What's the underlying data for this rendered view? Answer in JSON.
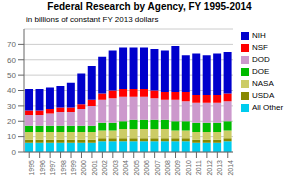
{
  "chart_data": {
    "type": "bar",
    "stacked": true,
    "title": "Federal Research by Agency, FY 1995-2014",
    "subtitle": "in billions of constant FY 2013 dollars",
    "categories": [
      "1995",
      "1996",
      "1997",
      "1998",
      "1999",
      "2000",
      "2001",
      "2002",
      "2003",
      "2004",
      "2005",
      "2006",
      "2007",
      "2008",
      "2009",
      "2010",
      "2011",
      "2012",
      "2013",
      "2014"
    ],
    "series": [
      {
        "name": "All Other",
        "color": "#00ccee",
        "values": [
          6,
          6,
          6,
          6,
          6,
          6,
          6,
          7,
          7,
          7,
          7,
          7,
          7,
          7,
          7,
          7,
          6,
          6,
          6,
          7
        ]
      },
      {
        "name": "USDA",
        "color": "#888800",
        "values": [
          2,
          2,
          2,
          2,
          2,
          2,
          2,
          2,
          2,
          2,
          2,
          2,
          2,
          2,
          2,
          2,
          2,
          2,
          2,
          2
        ]
      },
      {
        "name": "NASA",
        "color": "#cccc66",
        "values": [
          5,
          5,
          5,
          5,
          5,
          5,
          5,
          5,
          5,
          6,
          6,
          6,
          6,
          6,
          5,
          5,
          5,
          5,
          5,
          5
        ]
      },
      {
        "name": "DOE",
        "color": "#00bb00",
        "values": [
          4,
          4,
          4,
          4,
          4,
          4,
          4,
          5,
          5,
          5,
          6,
          6,
          6,
          6,
          6,
          6,
          6,
          6,
          6,
          6
        ]
      },
      {
        "name": "DOD",
        "color": "#cc99cc",
        "values": [
          7,
          7,
          8,
          9,
          9,
          11,
          13,
          15,
          16,
          16,
          15,
          15,
          14,
          13,
          14,
          13,
          13,
          13,
          13,
          13
        ]
      },
      {
        "name": "NSF",
        "color": "#ff0000",
        "values": [
          3,
          3,
          3,
          3,
          3,
          3,
          4,
          4,
          5,
          5,
          5,
          5,
          5,
          5,
          5,
          6,
          5,
          5,
          5,
          5
        ]
      },
      {
        "name": "NIH",
        "color": "#0000cc",
        "values": [
          14,
          14,
          14,
          14,
          16,
          20,
          22,
          24,
          26,
          27,
          27,
          27,
          27,
          27,
          30,
          24,
          27,
          26,
          27,
          27
        ]
      }
    ],
    "ylim": [
      0,
      80
    ],
    "yticks": [
      0,
      10,
      20,
      30,
      40,
      50,
      60,
      70
    ],
    "grid": true,
    "legend": "right"
  }
}
